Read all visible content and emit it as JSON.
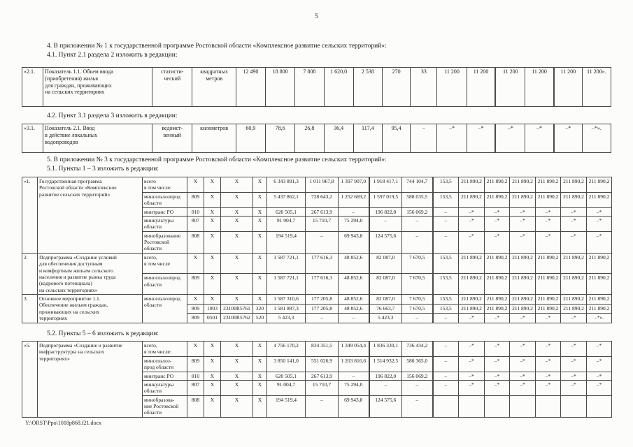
{
  "page": {
    "number": "5",
    "footer": "Y:\\ORST\\Ppo\\1018p868.f21.docx"
  },
  "paragraphs": {
    "p4": "4. В приложении № 1 к государственной программе Ростовской области «Комплексное развитие сельских территорий»:",
    "p41": "4.1. Пункт 2.1 раздела 2 изложить в редакции:",
    "p42": "4.2. Пункт 3.1 раздела 3 изложить в редакции:",
    "p5": "5. В приложении № 3 к государственной программе Ростовской области «Комплексное развитие сельских территорий»:",
    "p51": "5.1. Пункты 1 – 3 изложить в редакции:",
    "p52": "5.2. Пункты 5 – 6 изложить в редакции:"
  },
  "tables": {
    "t1": {
      "widths": [
        30,
        155,
        57,
        62,
        42,
        42,
        41,
        42,
        41,
        40,
        38,
        42,
        41,
        42,
        41,
        40,
        41
      ],
      "rows": [
        [
          {
            "t": "«2.1.",
            "cls": "tp"
          },
          {
            "t": "Показатель 1.1. Объем ввода\n(приобретения) жилья\nдля граждан, проживающих\nна сельских территориях",
            "cls": "nm"
          },
          {
            "t": "статисти-\nческий",
            "cls": "cw"
          },
          {
            "t": "квадратных\nметров",
            "cls": "cw"
          },
          "12 490",
          "18 800",
          "7 808",
          "1 620,0",
          "2 538",
          "270",
          "33",
          "11 200",
          "11 200",
          {
            "t": "11 200",
            "cls": "bl"
          },
          "11 200",
          {
            "t": "11 200",
            "cls": "bl"
          },
          "11 200»."
        ]
      ]
    },
    "t2": {
      "widths": [
        30,
        155,
        57,
        62,
        42,
        42,
        41,
        42,
        41,
        40,
        38,
        42,
        41,
        42,
        41,
        40,
        41
      ],
      "rows": [
        [
          {
            "t": "«3.1.",
            "cls": "tp"
          },
          {
            "t": "Показатель 2.1. Ввод\nв действие локальных\nводопроводов",
            "cls": "nm"
          },
          {
            "t": "ведомст-\nвенный",
            "cls": "cw"
          },
          {
            "t": "километров",
            "cls": "cw"
          },
          "60,9",
          "78,6",
          "26,8",
          "36,4",
          "117,4",
          "95,4",
          "–",
          "–*",
          "–*",
          {
            "t": "–*",
            "cls": "bl"
          },
          "–*",
          {
            "t": "–*",
            "cls": "bl"
          },
          "–*»."
        ]
      ]
    },
    "t3": {
      "widths": [
        22,
        150,
        64,
        24,
        24,
        46,
        20,
        55,
        47,
        44,
        47,
        44,
        37,
        37,
        36,
        37,
        36,
        37,
        36
      ],
      "rows": [
        [
          {
            "t": "«1.",
            "cls": "tp",
            "rs": 5
          },
          {
            "t": "Государственная программа\nРостовской области «Комплексное\nразвитие сельских территорий»",
            "cls": "nm",
            "rs": 5
          },
          {
            "t": "всего\nв том числе:",
            "cls": "og"
          },
          "X",
          "X",
          "X",
          "X",
          "6 343 891,3",
          "1 011 967,8",
          "1 397 907,0",
          {
            "t": "1 918 417,1",
            "cls": "bl"
          },
          "744 104,7",
          {
            "t": "153,5",
            "cls": "bl"
          },
          "211 890,2",
          "211 890,2",
          "211 890,2",
          "211 890,2",
          "211 890,2",
          "211 890,2"
        ],
        [
          {
            "t": "минсельхозпрод\nобласти",
            "cls": "og"
          },
          "809",
          "X",
          "X",
          "X",
          "5 437 862,1",
          "728 643,2",
          "1 252 669,2",
          {
            "t": "1 597 019,5",
            "cls": "bl"
          },
          "588 035,5",
          {
            "t": "153,5",
            "cls": "bl"
          },
          "211 890,2",
          "211 890,2",
          "211 890,2",
          "211 890,2",
          "211 890,2",
          "211 890,2"
        ],
        [
          {
            "t": "минтранс РО",
            "cls": "og"
          },
          "810",
          "X",
          "X",
          "X",
          "620 505,1",
          "267 613,9",
          "–",
          {
            "t": "196 822,0",
            "cls": "bl"
          },
          "156 069,2",
          {
            "t": "–",
            "cls": "bl"
          },
          "–*",
          "–*",
          "–*",
          "–*",
          "–*",
          "–*"
        ],
        [
          {
            "t": "минкультуры\nобласти",
            "cls": "og"
          },
          "807",
          "X",
          "X",
          "X",
          "91 004,7",
          "15 710,7",
          "75 294,0",
          {
            "t": "–",
            "cls": "bl"
          },
          "–",
          {
            "t": "–",
            "cls": "bl"
          },
          "–*",
          "–*",
          "–*",
          "–*",
          "–*",
          "–*"
        ],
        [
          {
            "t": "минобразование\nРостовской\nобласти",
            "cls": "og"
          },
          "808",
          "X",
          "X",
          "X",
          "194 519,4",
          "–",
          "69 943,8",
          {
            "t": "124 575,6",
            "cls": "bl"
          },
          "–",
          {
            "t": "–",
            "cls": "bl"
          },
          "–*",
          "–*",
          "–*",
          "–*",
          "–*",
          "–*"
        ],
        [
          {
            "t": "2.",
            "cls": "tp",
            "rs": 2
          },
          {
            "t": "Подпрограмма «Создание условий\nдля обеспечения доступным\nи комфортным жильем сельского\nнаселения и развитие рынка труда\n(кадрового потенциала)\nна сельских территориях»",
            "cls": "nm",
            "rs": 2
          },
          {
            "t": "всего,\nв том числе",
            "cls": "og"
          },
          "X",
          "X",
          "X",
          "X",
          "1 587 721,1",
          "177 616,3",
          "48 852,6",
          {
            "t": "82 087,0",
            "cls": "bl"
          },
          "7 670,5",
          {
            "t": "153,5",
            "cls": "bl"
          },
          "211 890,2",
          "211 890,2",
          "211 890,2",
          "211 890,2",
          "211 890,2",
          "211 890,2"
        ],
        [
          {
            "t": "минсельхозпрод\nобласти",
            "cls": "og"
          },
          "809",
          "X",
          "X",
          "X",
          "1 587 721,1",
          "177 616,3",
          "48 852,6",
          {
            "t": "82 087,0",
            "cls": "bl"
          },
          "7 670,5",
          {
            "t": "153,5",
            "cls": "bl"
          },
          "211 890,2",
          "211 890,2",
          "211 890,2",
          "211 890,2",
          "211 890,2",
          "211 890,2"
        ],
        [
          {
            "t": "3.",
            "cls": "tp",
            "rs": 3
          },
          {
            "t": "Основное мероприятие 1.1.\nОбеспечение жильем граждан,\nпроживающих на сельских\nтерриториях",
            "cls": "nm",
            "rs": 3
          },
          {
            "t": "минсельхозпрод\nобласти",
            "cls": "og",
            "rs": 3
          },
          "X",
          "X",
          "X",
          "X",
          "1 587 310,6",
          "177 205,8",
          "48 852,6",
          {
            "t": "82 087,0",
            "cls": "bl"
          },
          "7 670,5",
          {
            "t": "153,5",
            "cls": "bl"
          },
          "211 890,2",
          "211 890,2",
          "211 890,2",
          "211 890,2",
          "211 890,2",
          "211 890,2"
        ],
        [
          "809",
          "1003",
          "23100R5761",
          "320",
          "1 581 887,3",
          "177 205,8",
          "48 852,6",
          {
            "t": "76 663,7",
            "cls": "bl"
          },
          "7 670,5",
          {
            "t": "153,5",
            "cls": "bl"
          },
          "211 890,2",
          "211 890,2",
          "211 890,2",
          "211 890,2",
          "211 890,2",
          "211 890,2"
        ],
        [
          "809",
          "0501",
          "23100R5762",
          "520",
          "5 423,3",
          "–",
          "–",
          {
            "t": "5 423,3",
            "cls": "bl"
          },
          "–",
          {
            "t": "–",
            "cls": "bl"
          },
          "–*",
          "–*",
          "–*",
          "–*",
          "–*",
          "–*»."
        ]
      ]
    },
    "t4": {
      "widths": [
        22,
        150,
        64,
        24,
        24,
        46,
        20,
        55,
        47,
        44,
        47,
        44,
        37,
        37,
        36,
        37,
        36,
        37,
        36
      ],
      "rows": [
        [
          {
            "t": "«5.",
            "cls": "tp",
            "rs": 5
          },
          {
            "t": "Подпрограмма «Создание и развитие\nинфраструктуры на сельских\nтерриториях»",
            "cls": "nm",
            "rs": 5
          },
          {
            "t": "всего,\nв том числе:",
            "cls": "og"
          },
          "X",
          "X",
          "X",
          "X",
          "4 756 170,2",
          "834 351,5",
          "1 349 054,4",
          {
            "t": "1 836 330,1",
            "cls": "bl"
          },
          "736 434,2",
          {
            "t": "–",
            "cls": "bl"
          },
          "–*",
          "–*",
          "–*",
          "–*",
          "–*",
          "–*"
        ],
        [
          {
            "t": "минсельхоз-\nпрод области",
            "cls": "og"
          },
          "809",
          "X",
          "X",
          "X",
          "3 850 141,0",
          "551 026,9",
          "1 203 816,6",
          {
            "t": "1 514 932,5",
            "cls": "bl"
          },
          "580 365,0",
          {
            "t": "–",
            "cls": "bl"
          },
          "–*",
          "–*",
          "–*",
          "–*",
          "–*",
          "–*"
        ],
        [
          {
            "t": "минтранс РО",
            "cls": "og"
          },
          "810",
          "X",
          "X",
          "X",
          "620 505,1",
          "267 613,9",
          "–",
          {
            "t": "196 822,0",
            "cls": "bl"
          },
          "156 069,2",
          {
            "t": "–",
            "cls": "bl"
          },
          "–*",
          "–*",
          "–*",
          "–*",
          "–*",
          "–*"
        ],
        [
          {
            "t": "минкультуры\nобласти",
            "cls": "og"
          },
          "807",
          "X",
          "X",
          "X",
          "91 004,7",
          "15 710,7",
          "75 294,0",
          {
            "t": "–",
            "cls": "bl"
          },
          "–",
          {
            "t": "–",
            "cls": "bl"
          },
          "–*",
          "–*",
          "–*",
          "–*",
          "–*",
          "–*"
        ],
        [
          {
            "t": "минобразова-\nние Ростовской\nобласти",
            "cls": "og"
          },
          "808",
          "X",
          "X",
          "X",
          "194 519,4",
          "–",
          "69 943,8",
          {
            "t": "124 575,6",
            "cls": "bl"
          },
          "–",
          {
            "t": "",
            "cls": "bl"
          },
          "",
          "",
          "",
          "",
          "",
          ""
        ]
      ]
    }
  }
}
